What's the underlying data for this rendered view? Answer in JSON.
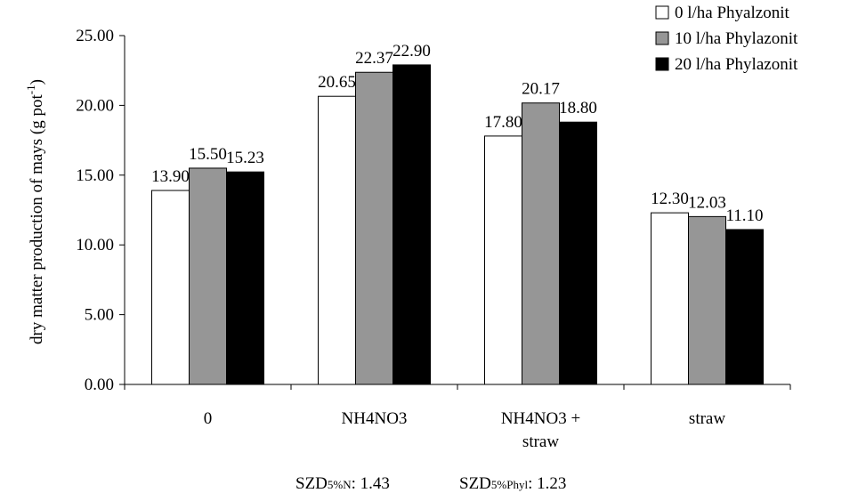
{
  "chart_data": {
    "type": "bar",
    "ylabel": "dry matter production of mays (g pot",
    "ylabel_sup": "-1",
    "ylabel_close": ")",
    "ylim": [
      0,
      25
    ],
    "yticks": [
      "0.00",
      "5.00",
      "10.00",
      "15.00",
      "20.00",
      "25.00"
    ],
    "categories": [
      {
        "lines": [
          "0"
        ]
      },
      {
        "lines": [
          "NH4NO3"
        ]
      },
      {
        "lines": [
          "NH4NO3 +",
          "straw"
        ]
      },
      {
        "lines": [
          "straw"
        ]
      }
    ],
    "series": [
      {
        "name": "0 l/ha Phyalzonit",
        "color": "#ffffff",
        "values": [
          13.9,
          20.65,
          17.8,
          12.3
        ],
        "labels": [
          "13.90",
          "20.65",
          "17.80",
          "12.30"
        ]
      },
      {
        "name": "10 l/ha Phylazonit",
        "color": "#969696",
        "values": [
          15.5,
          22.37,
          20.17,
          12.03
        ],
        "labels": [
          "15.50",
          "22.37",
          "20.17",
          "12.03"
        ]
      },
      {
        "name": "20 l/ha Phylazonit",
        "color": "#000000",
        "values": [
          15.23,
          22.9,
          18.8,
          11.1
        ],
        "labels": [
          "15.23",
          "22.90",
          "18.80",
          "11.10"
        ]
      }
    ],
    "legend_position": "top-right",
    "grid": false
  },
  "footnotes": [
    {
      "prefix": "SZD",
      "sub": "5%N",
      "value": ": 1.43"
    },
    {
      "prefix": "SZD",
      "sub": "5%Phyl",
      "value": ": 1.23"
    }
  ]
}
